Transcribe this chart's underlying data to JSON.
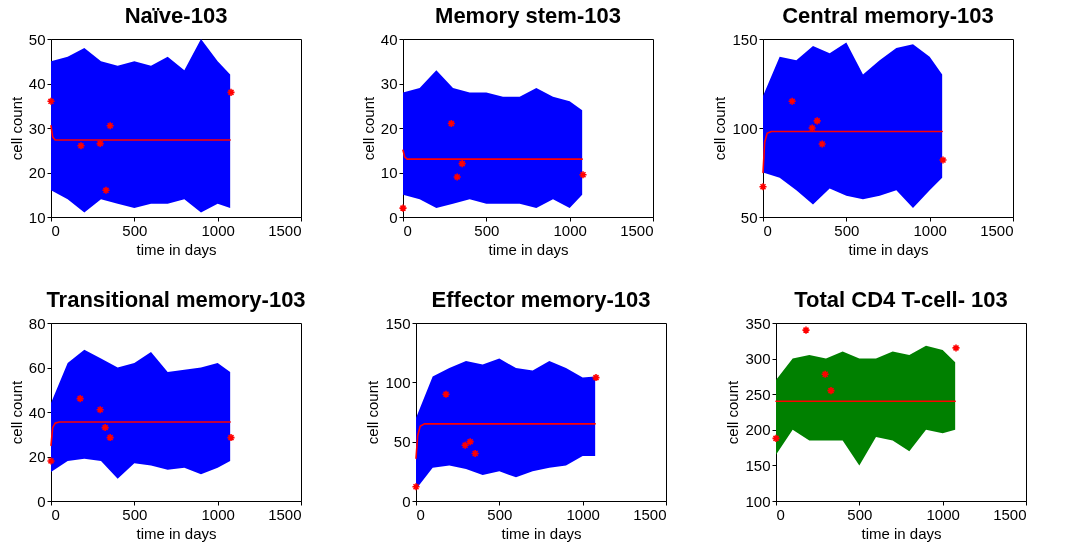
{
  "chart_data": [
    {
      "type": "line",
      "title": "Naïve-103",
      "xlabel": "time in days",
      "ylabel": "cell count",
      "xlim": [
        0,
        1500
      ],
      "xticks": [
        0,
        500,
        1000,
        1500
      ],
      "ylim": [
        10,
        50
      ],
      "yticks": [
        10,
        20,
        30,
        40,
        50
      ],
      "grid": false,
      "series": [
        {
          "color": "#0000ff",
          "x": [
            0,
            100,
            200,
            300,
            400,
            500,
            600,
            700,
            800,
            900,
            1000,
            1075
          ],
          "lower": [
            16,
            14,
            11,
            14,
            13,
            12,
            13,
            13,
            14,
            11,
            13,
            12
          ],
          "upper": [
            45,
            46,
            48,
            45,
            44,
            45,
            44,
            46,
            43,
            50,
            45,
            42
          ],
          "values": [
            null,
            null,
            null,
            null,
            null,
            null,
            null,
            null,
            null,
            null,
            null,
            null
          ]
        },
        {
          "color": "#ff0000",
          "x": [
            0,
            10,
            25,
            50,
            1075
          ],
          "values": [
            30.5,
            28,
            27.3,
            27.3,
            27.3
          ]
        },
        {
          "type": "scatter",
          "marker": "cross",
          "color": "#ff0000",
          "x": [
            0,
            180,
            295,
            330,
            355,
            1080
          ],
          "values": [
            36,
            26,
            26.5,
            16,
            30.5,
            38
          ]
        }
      ]
    },
    {
      "type": "line",
      "title": "Memory stem-103",
      "xlabel": "time in days",
      "ylabel": "cell count",
      "xlim": [
        0,
        1500
      ],
      "xticks": [
        0,
        500,
        1000,
        1500
      ],
      "ylim": [
        0,
        40
      ],
      "yticks": [
        0,
        10,
        20,
        30,
        40
      ],
      "grid": false,
      "series": [
        {
          "color": "#0000ff",
          "x": [
            0,
            100,
            200,
            300,
            400,
            500,
            600,
            700,
            800,
            900,
            1000,
            1075
          ],
          "lower": [
            5,
            4,
            2,
            3,
            4,
            3,
            3,
            3,
            2,
            4,
            2,
            5
          ],
          "upper": [
            28,
            29,
            33,
            29,
            28,
            28,
            27,
            27,
            29,
            27,
            26,
            24
          ],
          "values": [
            null,
            null,
            null,
            null,
            null,
            null,
            null,
            null,
            null,
            null,
            null,
            null
          ]
        },
        {
          "color": "#ff0000",
          "x": [
            0,
            10,
            25,
            50,
            1075
          ],
          "values": [
            15,
            13.5,
            13,
            13,
            13
          ]
        },
        {
          "type": "scatter",
          "marker": "cross",
          "color": "#ff0000",
          "x": [
            0,
            290,
            325,
            355,
            1080
          ],
          "values": [
            2,
            21,
            9,
            12,
            9.5
          ]
        }
      ]
    },
    {
      "type": "line",
      "title": "Central memory-103",
      "xlabel": "time in days",
      "ylabel": "cell count",
      "xlim": [
        0,
        1500
      ],
      "xticks": [
        0,
        500,
        1000,
        1500
      ],
      "ylim": [
        50,
        150
      ],
      "yticks": [
        50,
        100,
        150
      ],
      "grid": false,
      "series": [
        {
          "color": "#0000ff",
          "x": [
            0,
            100,
            200,
            300,
            400,
            500,
            600,
            700,
            800,
            900,
            1000,
            1075
          ],
          "lower": [
            75,
            72,
            65,
            57,
            66,
            62,
            60,
            62,
            65,
            55,
            65,
            72
          ],
          "upper": [
            118,
            140,
            138,
            146,
            142,
            148,
            130,
            138,
            145,
            147,
            140,
            130
          ],
          "values": [
            null,
            null,
            null,
            null,
            null,
            null,
            null,
            null,
            null,
            null,
            null,
            null
          ]
        },
        {
          "color": "#ff0000",
          "x": [
            0,
            10,
            25,
            50,
            1075
          ],
          "values": [
            75,
            92,
            97,
            98,
            98
          ]
        },
        {
          "type": "scatter",
          "marker": "cross",
          "color": "#ff0000",
          "x": [
            0,
            175,
            295,
            325,
            355,
            1080
          ],
          "values": [
            67,
            115,
            100,
            104,
            91,
            82
          ]
        }
      ]
    },
    {
      "type": "line",
      "title": "Transitional memory-103",
      "xlabel": "time in days",
      "ylabel": "cell count",
      "xlim": [
        0,
        1500
      ],
      "xticks": [
        0,
        500,
        1000,
        1500
      ],
      "ylim": [
        0,
        80
      ],
      "yticks": [
        0,
        20,
        40,
        60,
        80
      ],
      "grid": false,
      "series": [
        {
          "color": "#0000ff",
          "x": [
            0,
            100,
            200,
            300,
            400,
            500,
            600,
            700,
            800,
            900,
            1000,
            1075
          ],
          "lower": [
            13,
            18,
            19,
            18,
            10,
            17,
            16,
            14,
            15,
            12,
            15,
            18
          ],
          "upper": [
            44,
            62,
            68,
            64,
            60,
            62,
            67,
            58,
            59,
            60,
            62,
            58
          ],
          "values": [
            null,
            null,
            null,
            null,
            null,
            null,
            null,
            null,
            null,
            null,
            null,
            null
          ]
        },
        {
          "color": "#ff0000",
          "x": [
            0,
            10,
            25,
            50,
            1075
          ],
          "values": [
            25,
            33,
            35,
            35.5,
            35.5
          ]
        },
        {
          "type": "scatter",
          "marker": "cross",
          "color": "#ff0000",
          "x": [
            0,
            175,
            295,
            325,
            355,
            1080
          ],
          "values": [
            18,
            46,
            41,
            33,
            28.5,
            28.5
          ]
        }
      ]
    },
    {
      "type": "line",
      "title": "Effector memory-103",
      "xlabel": "time in days",
      "ylabel": "cell count",
      "xlim": [
        0,
        1500
      ],
      "xticks": [
        0,
        500,
        1000,
        1500
      ],
      "ylim": [
        0,
        150
      ],
      "yticks": [
        0,
        50,
        100,
        150
      ],
      "grid": false,
      "series": [
        {
          "color": "#0000ff",
          "x": [
            0,
            100,
            200,
            300,
            400,
            500,
            600,
            700,
            800,
            900,
            1000,
            1075
          ],
          "lower": [
            10,
            28,
            30,
            27,
            22,
            25,
            20,
            25,
            28,
            30,
            38,
            38
          ],
          "upper": [
            70,
            105,
            112,
            118,
            115,
            120,
            112,
            110,
            118,
            112,
            104,
            105
          ],
          "values": [
            null,
            null,
            null,
            null,
            null,
            null,
            null,
            null,
            null,
            null,
            null,
            null
          ]
        },
        {
          "color": "#ff0000",
          "x": [
            0,
            10,
            25,
            50,
            1075
          ],
          "values": [
            36,
            55,
            63,
            65,
            65
          ]
        },
        {
          "type": "scatter",
          "marker": "cross",
          "color": "#ff0000",
          "x": [
            0,
            180,
            295,
            325,
            355,
            1080
          ],
          "values": [
            12,
            90,
            47,
            50,
            40,
            104
          ]
        }
      ]
    },
    {
      "type": "line",
      "title": "Total CD4 T-cell- 103",
      "xlabel": "time in days",
      "ylabel": "cell count",
      "xlim": [
        0,
        1500
      ],
      "xticks": [
        0,
        500,
        1000,
        1500
      ],
      "ylim": [
        100,
        350
      ],
      "yticks": [
        100,
        150,
        200,
        250,
        300,
        350
      ],
      "grid": false,
      "series": [
        {
          "color": "#008000",
          "x": [
            0,
            100,
            200,
            300,
            400,
            500,
            600,
            700,
            800,
            900,
            1000,
            1075
          ],
          "lower": [
            165,
            200,
            185,
            185,
            185,
            150,
            190,
            185,
            170,
            200,
            195,
            200
          ],
          "upper": [
            270,
            300,
            305,
            300,
            310,
            300,
            300,
            310,
            305,
            318,
            312,
            295
          ],
          "values": [
            null,
            null,
            null,
            null,
            null,
            null,
            null,
            null,
            null,
            null,
            null,
            null
          ]
        },
        {
          "color": "#ff0000",
          "x": [
            0,
            1075
          ],
          "values": [
            240,
            240
          ]
        },
        {
          "type": "scatter",
          "marker": "cross",
          "color": "#ff0000",
          "x": [
            0,
            180,
            295,
            330,
            1080
          ],
          "values": [
            188,
            340,
            278,
            255,
            315
          ]
        }
      ]
    }
  ]
}
